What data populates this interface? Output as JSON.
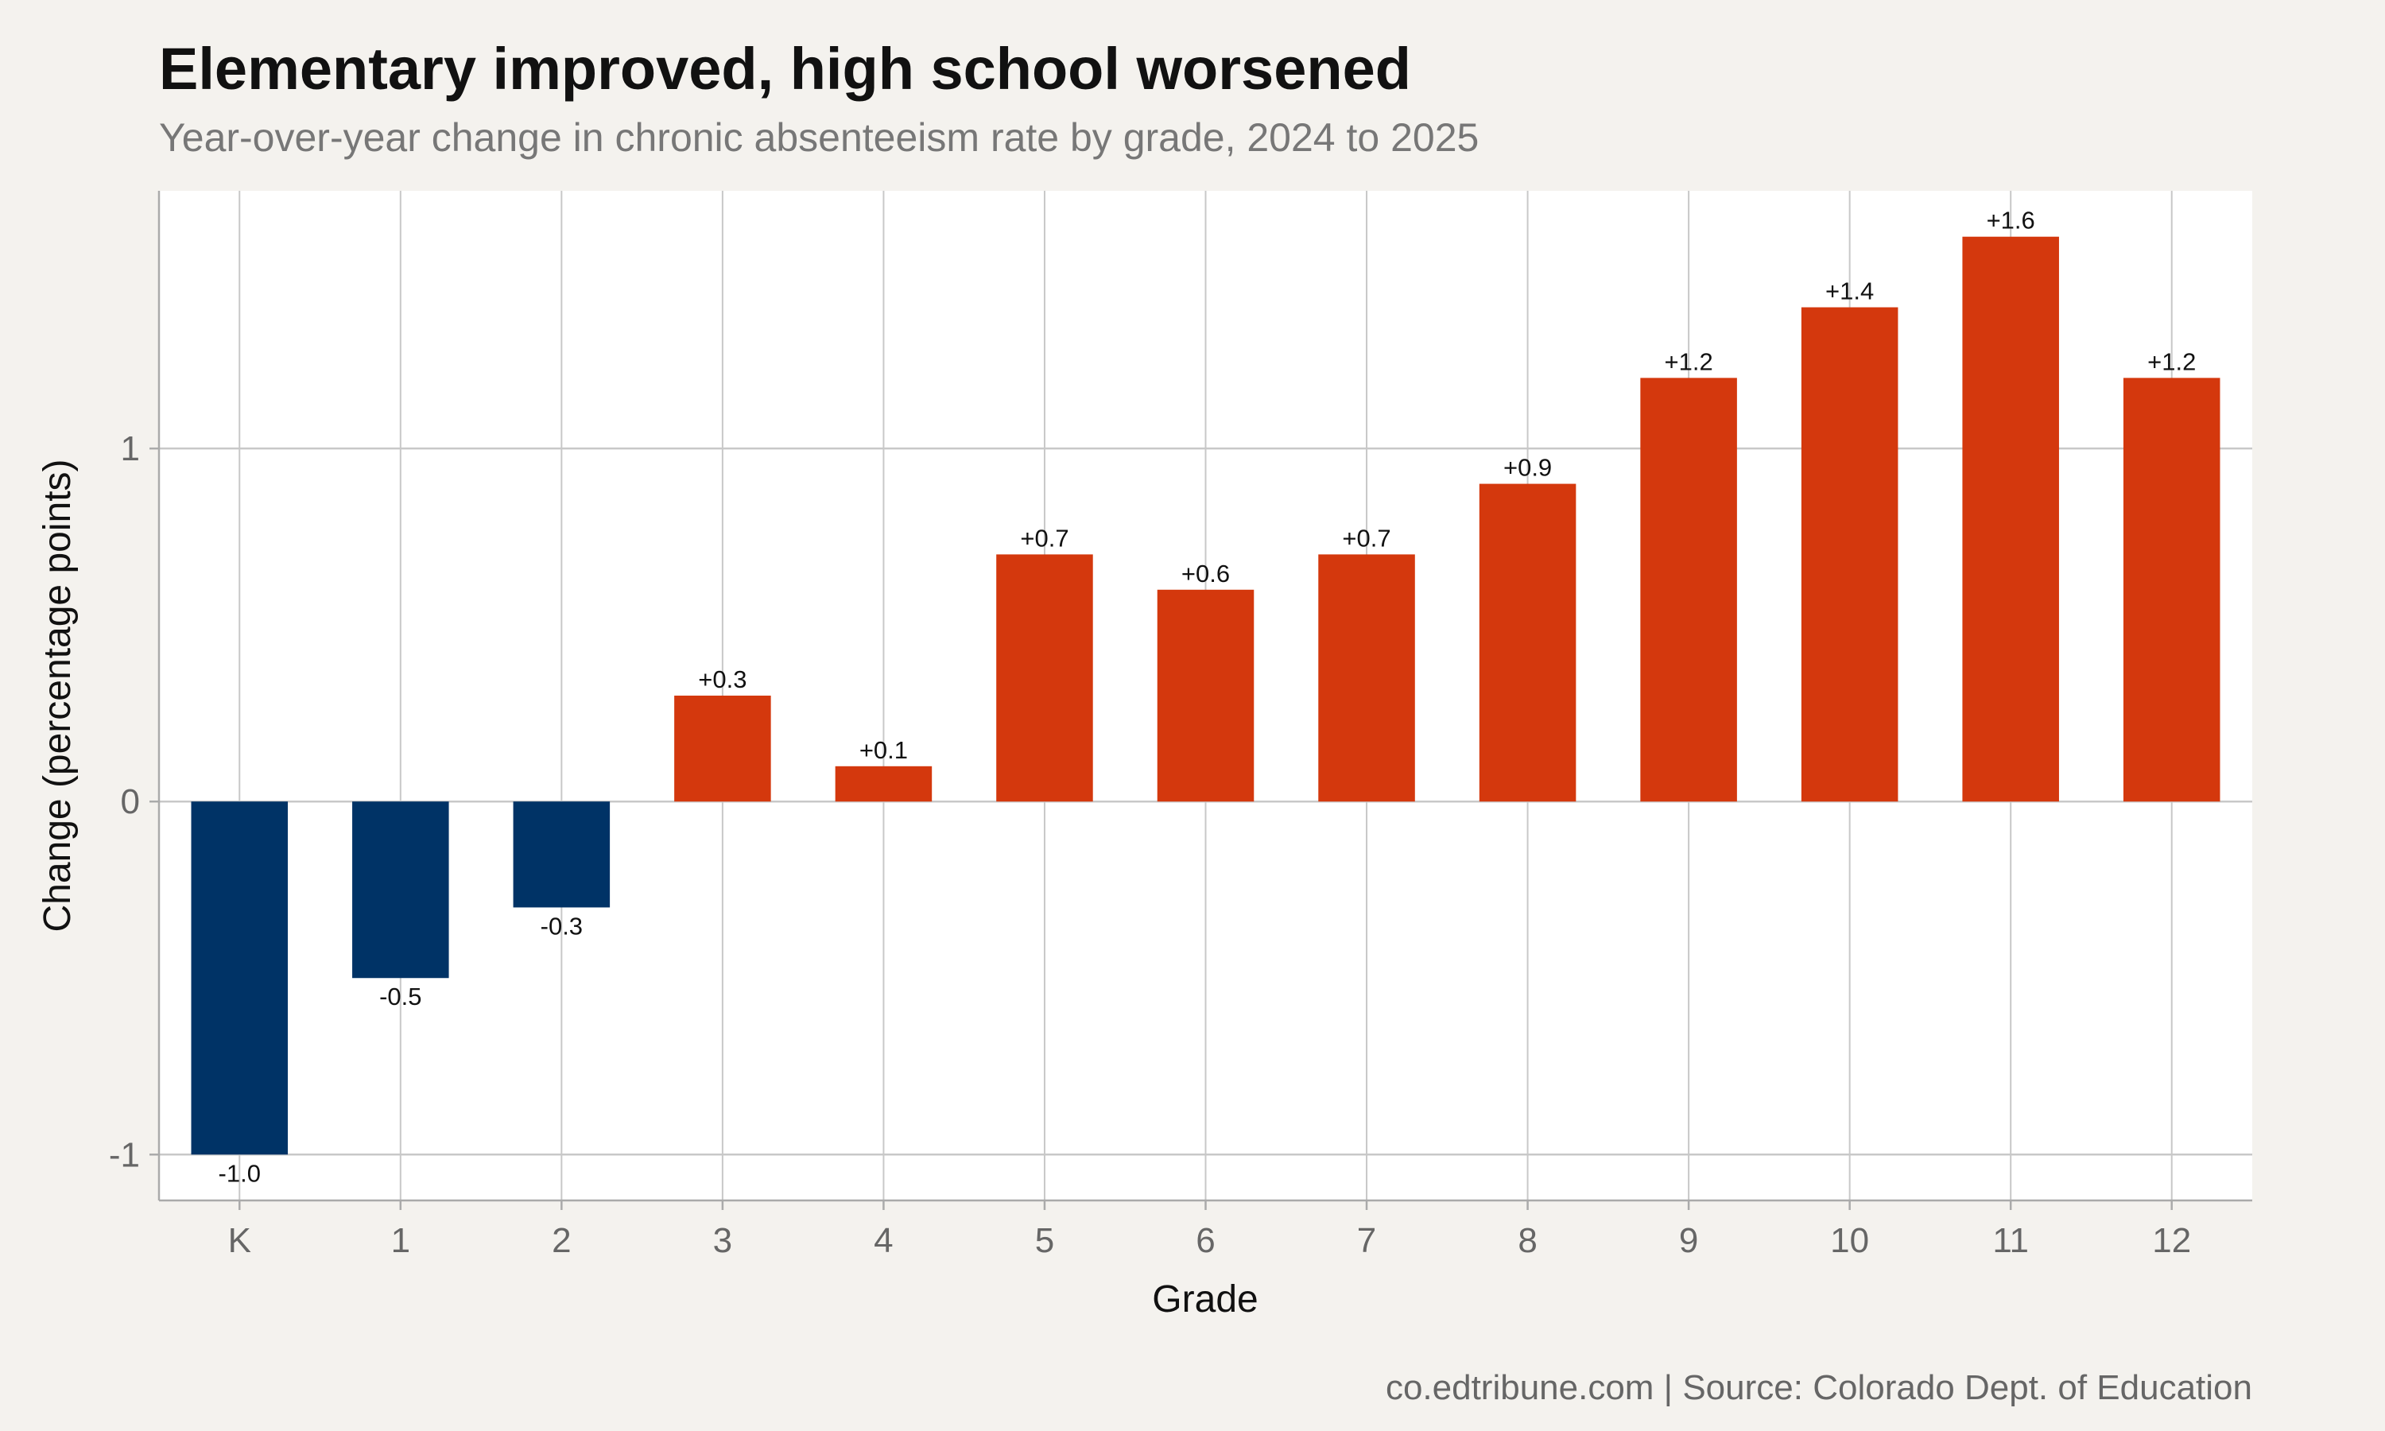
{
  "chart_data": {
    "type": "bar",
    "title": "Elementary improved, high school worsened",
    "subtitle": "Year-over-year change in chronic absenteeism rate by grade, 2024 to 2025",
    "xlabel": "Grade",
    "ylabel": "Change (percentage points)",
    "categories": [
      "K",
      "1",
      "2",
      "3",
      "4",
      "5",
      "6",
      "7",
      "8",
      "9",
      "10",
      "11",
      "12"
    ],
    "values": [
      -1.0,
      -0.5,
      -0.3,
      0.3,
      0.1,
      0.7,
      0.6,
      0.7,
      0.9,
      1.2,
      1.4,
      1.6,
      1.2
    ],
    "data_labels": [
      "-1.0",
      "-0.5",
      "-0.3",
      "+0.3",
      "+0.1",
      "+0.7",
      "+0.6",
      "+0.7",
      "+0.9",
      "+1.2",
      "+1.4",
      "+1.6",
      "+1.2"
    ],
    "yticks": [
      -1,
      0,
      1
    ],
    "ytick_labels": [
      "-1",
      "0",
      "1"
    ],
    "ylim": [
      -1.13,
      1.73
    ],
    "grid": true,
    "legend": "none",
    "colors": {
      "decrease": "#003366",
      "increase": "#d4380d",
      "background": "#f4f2ee",
      "panel": "#ffffff",
      "grid": "#c8c8c8"
    },
    "caption": "co.edtribune.com | Source: Colorado Dept. of Education"
  }
}
